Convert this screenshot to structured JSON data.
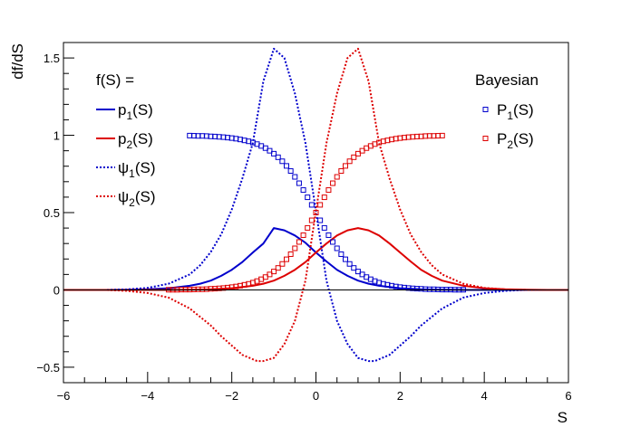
{
  "chart_data": {
    "type": "line",
    "title": "",
    "xlabel": "S",
    "ylabel": "df/dS",
    "xlim": [
      -6,
      6
    ],
    "ylim": [
      -0.6,
      1.6
    ],
    "xticks": [
      "−6",
      "−4",
      "−2",
      "0",
      "2",
      "4",
      "6"
    ],
    "yticks": [
      "−0.5",
      "0",
      "0.5",
      "1",
      "1.5"
    ],
    "grid": false,
    "legend_left": {
      "placement": "top-left",
      "header": "f(S) =",
      "entries": [
        {
          "base": "p",
          "sub": "1",
          "tail": "(S)",
          "color": "#0000cc",
          "style": "solid"
        },
        {
          "base": "p",
          "sub": "2",
          "tail": "(S)",
          "color": "#dd0000",
          "style": "solid"
        },
        {
          "base": "ψ",
          "sub": "1",
          "tail": "(S)",
          "color": "#0000cc",
          "style": "dotted"
        },
        {
          "base": "ψ",
          "sub": "2",
          "tail": "(S)",
          "color": "#dd0000",
          "style": "dotted"
        }
      ]
    },
    "legend_right": {
      "placement": "top-right",
      "header": "Bayesian",
      "entries": [
        {
          "base": "P",
          "sub": "1",
          "tail": "(S)",
          "color": "#0000cc",
          "style": "open-square"
        },
        {
          "base": "P",
          "sub": "2",
          "tail": "(S)",
          "color": "#dd0000",
          "style": "open-square"
        }
      ]
    },
    "series": [
      {
        "id": "p1",
        "type": "line",
        "style": "solid",
        "color": "#0000cc",
        "x": [
          -6,
          -5.5,
          -5,
          -4.5,
          -4,
          -3.5,
          -3,
          -2.75,
          -2.5,
          -2.25,
          -2,
          -1.75,
          -1.5,
          -1.25,
          -1,
          -0.75,
          -0.5,
          -0.25,
          0,
          0.25,
          0.5,
          0.75,
          1,
          1.25,
          1.5,
          2,
          2.5,
          3,
          3.5,
          4,
          4.5,
          5,
          5.5,
          6
        ],
        "y": [
          0,
          0,
          0,
          0.001,
          0.004,
          0.011,
          0.027,
          0.04,
          0.06,
          0.091,
          0.13,
          0.18,
          0.242,
          0.3,
          0.4,
          0.385,
          0.352,
          0.305,
          0.242,
          0.184,
          0.13,
          0.091,
          0.06,
          0.04,
          0.027,
          0.011,
          0.004,
          0.001,
          0,
          0,
          0,
          0,
          0,
          0
        ]
      },
      {
        "id": "p2",
        "type": "line",
        "style": "solid",
        "color": "#dd0000",
        "x": [
          -6,
          -5.5,
          -5,
          -4.5,
          -4,
          -3.5,
          -3,
          -2.5,
          -2,
          -1.5,
          -1.25,
          -1,
          -0.75,
          -0.5,
          -0.25,
          0,
          0.25,
          0.5,
          0.75,
          1,
          1.25,
          1.5,
          1.75,
          2,
          2.25,
          2.5,
          2.75,
          3,
          3.5,
          4,
          4.5,
          5,
          5.5,
          6
        ],
        "y": [
          0,
          0,
          0,
          0,
          0,
          0,
          0.001,
          0.004,
          0.011,
          0.027,
          0.04,
          0.06,
          0.091,
          0.13,
          0.18,
          0.242,
          0.3,
          0.352,
          0.385,
          0.4,
          0.385,
          0.352,
          0.3,
          0.242,
          0.184,
          0.13,
          0.091,
          0.06,
          0.027,
          0.011,
          0.004,
          0.001,
          0,
          0
        ]
      },
      {
        "id": "psi1",
        "type": "line",
        "style": "dotted",
        "color": "#0000cc",
        "x": [
          -6,
          -5.5,
          -5,
          -4.5,
          -4,
          -3.5,
          -3,
          -2.75,
          -2.5,
          -2.25,
          -2,
          -1.75,
          -1.5,
          -1.25,
          -1,
          -0.75,
          -0.5,
          -0.25,
          0,
          0.25,
          0.5,
          0.75,
          1,
          1.25,
          1.4,
          1.75,
          2,
          2.25,
          2.5,
          3,
          3.5,
          4,
          4.5,
          5,
          5.5,
          6
        ],
        "y": [
          0,
          0,
          0,
          0.003,
          0.013,
          0.04,
          0.1,
          0.16,
          0.245,
          0.36,
          0.52,
          0.72,
          0.95,
          1.35,
          1.56,
          1.5,
          1.27,
          0.95,
          0.51,
          0.06,
          -0.2,
          -0.35,
          -0.44,
          -0.46,
          -0.46,
          -0.42,
          -0.36,
          -0.3,
          -0.23,
          -0.12,
          -0.05,
          -0.02,
          -0.006,
          0,
          0,
          0
        ]
      },
      {
        "id": "psi2",
        "type": "line",
        "style": "dotted",
        "color": "#dd0000",
        "x": [
          -6,
          -5.5,
          -5,
          -4.5,
          -4,
          -3.5,
          -3,
          -2.5,
          -2.25,
          -2,
          -1.75,
          -1.4,
          -1.25,
          -1,
          -0.75,
          -0.5,
          -0.25,
          0,
          0.25,
          0.5,
          0.75,
          1,
          1.25,
          1.5,
          1.75,
          2,
          2.25,
          2.5,
          2.75,
          3,
          3.5,
          4,
          4.5,
          5,
          5.5,
          6
        ],
        "y": [
          0,
          0,
          0,
          -0.006,
          -0.02,
          -0.05,
          -0.12,
          -0.23,
          -0.3,
          -0.36,
          -0.42,
          -0.46,
          -0.46,
          -0.44,
          -0.35,
          -0.2,
          0.06,
          0.51,
          0.95,
          1.27,
          1.5,
          1.56,
          1.35,
          0.95,
          0.72,
          0.52,
          0.36,
          0.245,
          0.16,
          0.1,
          0.04,
          0.013,
          0.003,
          0,
          0,
          0
        ]
      },
      {
        "id": "P1",
        "type": "scatter",
        "marker": "open-square",
        "color": "#0000cc",
        "x": [
          -3,
          -2.9,
          -2.8,
          -2.7,
          -2.6,
          -2.5,
          -2.4,
          -2.3,
          -2.2,
          -2.1,
          -2,
          -1.9,
          -1.8,
          -1.7,
          -1.6,
          -1.5,
          -1.4,
          -1.3,
          -1.2,
          -1.1,
          -1,
          -0.9,
          -0.8,
          -0.7,
          -0.6,
          -0.5,
          -0.4,
          -0.3,
          -0.2,
          -0.1,
          0,
          0.1,
          0.2,
          0.3,
          0.4,
          0.5,
          0.6,
          0.7,
          0.8,
          0.9,
          1,
          1.1,
          1.2,
          1.3,
          1.4,
          1.5,
          1.6,
          1.7,
          1.8,
          1.9,
          2,
          2.1,
          2.2,
          2.3,
          2.4,
          2.5,
          2.6,
          2.7,
          2.8,
          2.9,
          3,
          3.1,
          3.2,
          3.3,
          3.4,
          3.5
        ],
        "y": [
          0.998,
          0.997,
          0.996,
          0.996,
          0.995,
          0.993,
          0.992,
          0.99,
          0.988,
          0.985,
          0.982,
          0.978,
          0.973,
          0.967,
          0.961,
          0.953,
          0.943,
          0.931,
          0.917,
          0.9,
          0.881,
          0.858,
          0.832,
          0.802,
          0.769,
          0.731,
          0.69,
          0.646,
          0.599,
          0.55,
          0.5,
          0.45,
          0.401,
          0.354,
          0.31,
          0.269,
          0.231,
          0.198,
          0.168,
          0.142,
          0.119,
          0.1,
          0.083,
          0.069,
          0.057,
          0.047,
          0.039,
          0.033,
          0.027,
          0.022,
          0.018,
          0.015,
          0.012,
          0.01,
          0.008,
          0.007,
          0.005,
          0.004,
          0.004,
          0.003,
          0.002,
          0.002,
          0.002,
          0.001,
          0.001,
          0.001
        ]
      },
      {
        "id": "P2",
        "type": "scatter",
        "marker": "open-square",
        "color": "#dd0000",
        "x": [
          -3.5,
          -3.4,
          -3.3,
          -3.2,
          -3.1,
          -3,
          -2.9,
          -2.8,
          -2.7,
          -2.6,
          -2.5,
          -2.4,
          -2.3,
          -2.2,
          -2.1,
          -2,
          -1.9,
          -1.8,
          -1.7,
          -1.6,
          -1.5,
          -1.4,
          -1.3,
          -1.2,
          -1.1,
          -1,
          -0.9,
          -0.8,
          -0.7,
          -0.6,
          -0.5,
          -0.4,
          -0.3,
          -0.2,
          -0.1,
          0,
          0.1,
          0.2,
          0.3,
          0.4,
          0.5,
          0.6,
          0.7,
          0.8,
          0.9,
          1,
          1.1,
          1.2,
          1.3,
          1.4,
          1.5,
          1.6,
          1.7,
          1.8,
          1.9,
          2,
          2.1,
          2.2,
          2.3,
          2.4,
          2.5,
          2.6,
          2.7,
          2.8,
          2.9,
          3
        ],
        "y": [
          0.001,
          0.001,
          0.001,
          0.002,
          0.002,
          0.002,
          0.003,
          0.004,
          0.004,
          0.005,
          0.007,
          0.008,
          0.01,
          0.012,
          0.015,
          0.018,
          0.022,
          0.027,
          0.033,
          0.039,
          0.047,
          0.057,
          0.069,
          0.083,
          0.1,
          0.119,
          0.142,
          0.168,
          0.198,
          0.231,
          0.269,
          0.31,
          0.354,
          0.401,
          0.45,
          0.5,
          0.55,
          0.599,
          0.646,
          0.69,
          0.731,
          0.769,
          0.802,
          0.832,
          0.858,
          0.881,
          0.9,
          0.917,
          0.931,
          0.943,
          0.953,
          0.961,
          0.967,
          0.973,
          0.978,
          0.982,
          0.985,
          0.988,
          0.99,
          0.992,
          0.993,
          0.995,
          0.996,
          0.996,
          0.997,
          0.998
        ]
      }
    ]
  }
}
